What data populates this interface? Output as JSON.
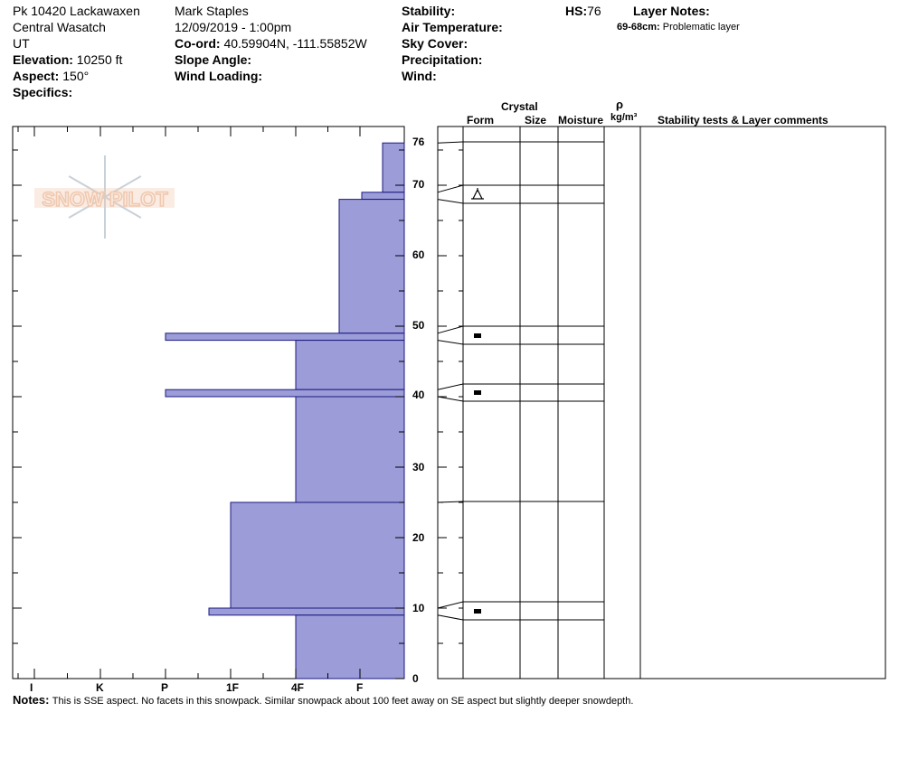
{
  "header": {
    "location": "Pk 10420 Lackawaxen",
    "range": "Central Wasatch",
    "state": "UT",
    "elevation_label": "Elevation:",
    "elevation_value": "10250 ft",
    "aspect_label": "Aspect:",
    "aspect_value": "150°",
    "specifics_label": "Specifics:",
    "observer": "Mark Staples",
    "datetime": "12/09/2019 - 1:00pm",
    "coord_label": "Co-ord:",
    "coord_value": "40.59904N, -111.55852W",
    "slope_label": "Slope Angle:",
    "wind_loading_label": "Wind Loading:",
    "stability_label": "Stability:",
    "air_temp_label": "Air Temperature:",
    "sky_cover_label": "Sky Cover:",
    "precip_label": "Precipitation:",
    "wind_label": "Wind:",
    "hs_label": "HS:",
    "hs_value": "76",
    "layer_notes_label": "Layer Notes:",
    "layer_note_range": "69-68cm:",
    "layer_note_text": "Problematic layer"
  },
  "logo": {
    "text": "SNOW PILOT"
  },
  "columns": {
    "crystal": "Crystal",
    "form": "Form",
    "size": "Size",
    "moisture": "Moisture",
    "rho": "ρ",
    "density_unit": "kg/m³",
    "stability_comments": "Stability tests & Layer comments"
  },
  "hardness_scale": [
    "I",
    "K",
    "P",
    "1F",
    "4F",
    "F"
  ],
  "depth_ticks": [
    "0",
    "10",
    "20",
    "30",
    "40",
    "50",
    "60",
    "70",
    "76"
  ],
  "notes": {
    "label": "Notes:",
    "text": "This is SSE aspect. No facets in this snowpack. Similar snowpack about 100 feet away on SE aspect but slightly deeper snowdepth."
  },
  "colors": {
    "profile_fill": "#9c9cd8",
    "profile_stroke": "#1a1a80",
    "logo": "#f0c8b0"
  },
  "chart_data": {
    "type": "snow_profile",
    "total_depth_cm": 76,
    "y_unit": "cm",
    "ylim": [
      0,
      76
    ],
    "hardness_levels": [
      "F",
      "4F",
      "1F",
      "P",
      "K",
      "I"
    ],
    "layers": [
      {
        "top": 76,
        "bottom": 69,
        "hardness": "F"
      },
      {
        "top": 69,
        "bottom": 68,
        "hardness": "F+"
      },
      {
        "top": 68,
        "bottom": 49,
        "hardness": "F-4F"
      },
      {
        "top": 49,
        "bottom": 48,
        "hardness": "P"
      },
      {
        "top": 48,
        "bottom": 41,
        "hardness": "4F"
      },
      {
        "top": 41,
        "bottom": 40,
        "hardness": "P"
      },
      {
        "top": 40,
        "bottom": 25,
        "hardness": "4F"
      },
      {
        "top": 25,
        "bottom": 10,
        "hardness": "1F"
      },
      {
        "top": 10,
        "bottom": 9,
        "hardness": "1F+"
      },
      {
        "top": 9,
        "bottom": 0,
        "hardness": "4F"
      }
    ],
    "grain_markers": [
      {
        "depth": 68.5,
        "symbol": "surface-hoar"
      },
      {
        "depth": 48.5,
        "symbol": "melt-freeze-crust"
      },
      {
        "depth": 40.5,
        "symbol": "melt-freeze-crust"
      },
      {
        "depth": 9.5,
        "symbol": "melt-freeze-crust"
      }
    ]
  }
}
